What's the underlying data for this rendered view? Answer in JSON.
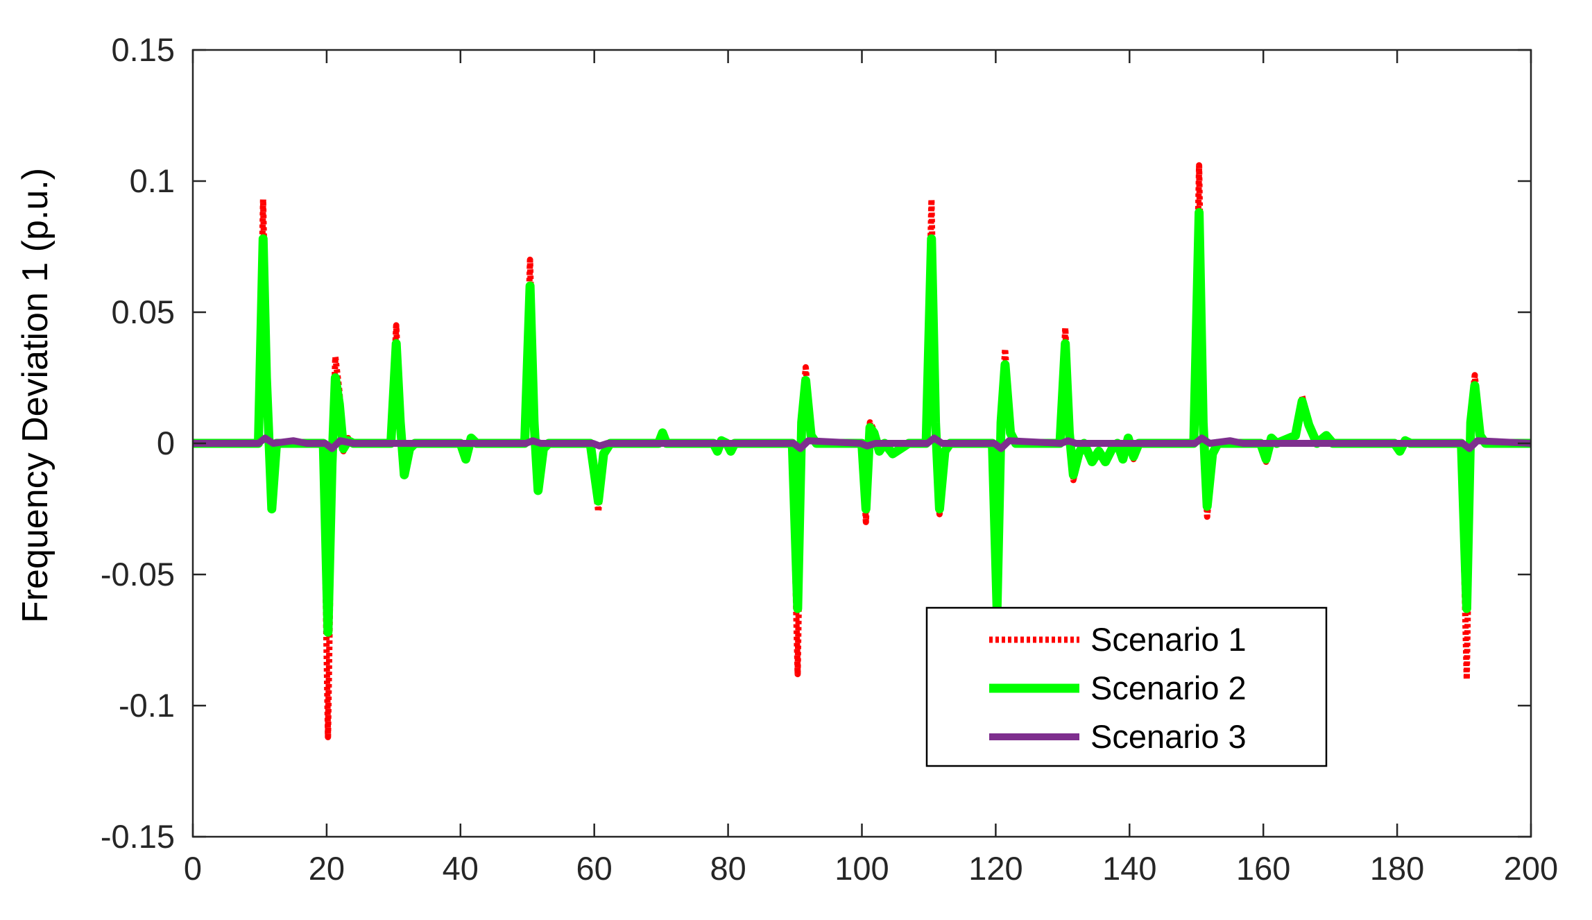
{
  "chart_data": {
    "type": "line",
    "title": "",
    "xlabel": "",
    "ylabel": "Frequency Deviation 1 (p.u.)",
    "xlim": [
      0,
      200
    ],
    "ylim": [
      -0.15,
      0.15
    ],
    "xticks": [
      0,
      20,
      40,
      60,
      80,
      100,
      120,
      140,
      160,
      180,
      200
    ],
    "xtick_labels": [
      "0",
      "20",
      "40",
      "60",
      "80",
      "100",
      "120",
      "140",
      "160",
      "180",
      "200"
    ],
    "yticks": [
      -0.15,
      -0.1,
      -0.05,
      0,
      0.05,
      0.1,
      0.15
    ],
    "ytick_labels": [
      "-0.15",
      "-0.1",
      "-0.05",
      "0",
      "0.05",
      "0.1",
      "0.15"
    ],
    "grid": false,
    "legend": {
      "position": "bottom-right",
      "entries": [
        "Scenario 1",
        "Scenario 2",
        "Scenario 3"
      ]
    },
    "series": [
      {
        "name": "Scenario 1",
        "color": "#ff0000",
        "style": "dotted",
        "x": [
          0,
          9.8,
          10.5,
          11.0,
          11.8,
          12.5,
          19.5,
          20.2,
          20.8,
          21.3,
          21.9,
          22.5,
          23.2,
          24.0,
          29.6,
          30.4,
          31.0,
          31.6,
          32.4,
          33.2,
          40.0,
          40.8,
          41.6,
          42.4,
          49.6,
          50.4,
          51.0,
          51.6,
          52.4,
          53.2,
          59.4,
          60.6,
          61.4,
          62.4,
          69.6,
          70.2,
          70.8,
          77.8,
          78.4,
          79.0,
          79.8,
          80.4,
          81.0,
          89.6,
          90.4,
          91.0,
          91.6,
          92.4,
          93.2,
          100.0,
          100.6,
          101.2,
          101.8,
          102.6,
          103.4,
          104.6,
          105.8,
          107.0,
          109.6,
          110.4,
          111.0,
          111.6,
          112.4,
          113.2,
          119.5,
          120.2,
          120.8,
          121.4,
          122.2,
          123.0,
          129.6,
          130.4,
          131.0,
          131.6,
          132.4,
          133.2,
          134.4,
          135.4,
          136.4,
          137.4,
          138.2,
          139.0,
          139.8,
          140.6,
          141.4,
          149.6,
          150.4,
          151.0,
          151.6,
          152.4,
          153.2,
          159.6,
          160.4,
          161.2,
          162.0,
          164.8,
          165.8,
          166.8,
          168.0,
          169.4,
          170.4,
          171.2,
          172.0,
          179.6,
          180.4,
          181.2,
          182.0,
          189.6,
          190.4,
          191.0,
          191.6,
          192.4,
          193.2,
          200
        ],
        "y": [
          0,
          0,
          0.093,
          0.03,
          -0.026,
          0,
          0,
          -0.112,
          -0.01,
          0.033,
          0.02,
          -0.003,
          0.002,
          0,
          0,
          0.045,
          0.01,
          -0.013,
          -0.003,
          0,
          0,
          -0.006,
          0.002,
          0,
          0,
          0.07,
          0.01,
          -0.019,
          -0.003,
          0,
          0,
          -0.026,
          -0.005,
          0,
          0,
          0.004,
          0,
          0,
          -0.003,
          0.001,
          0,
          -0.003,
          0,
          0,
          -0.088,
          0.01,
          0.029,
          0.004,
          0,
          0,
          -0.03,
          0.008,
          0.005,
          -0.003,
          0,
          -0.004,
          -0.002,
          0,
          0,
          0.093,
          0.01,
          -0.027,
          -0.004,
          0,
          0,
          -0.063,
          0.01,
          0.036,
          0.005,
          0,
          0,
          0.044,
          0.005,
          -0.014,
          -0.005,
          0,
          -0.008,
          -0.004,
          -0.008,
          -0.002,
          0,
          -0.007,
          0.002,
          -0.006,
          0,
          0,
          0.106,
          0.01,
          -0.028,
          -0.005,
          0,
          0,
          -0.007,
          0.002,
          0,
          0.003,
          0.018,
          0.008,
          0,
          0.003,
          0,
          0,
          0,
          0,
          -0.003,
          0.001,
          0,
          0,
          -0.09,
          0.01,
          0.026,
          0.004,
          0,
          0
        ]
      },
      {
        "name": "Scenario 2",
        "color": "#00ff00",
        "style": "solid",
        "x": [
          0,
          9.8,
          10.5,
          11.0,
          11.8,
          12.5,
          19.5,
          20.2,
          20.8,
          21.3,
          21.9,
          22.5,
          23.2,
          24.0,
          29.6,
          30.4,
          31.0,
          31.6,
          32.4,
          33.2,
          40.0,
          40.8,
          41.6,
          42.4,
          49.6,
          50.4,
          51.0,
          51.6,
          52.4,
          53.2,
          59.4,
          60.6,
          61.4,
          62.4,
          69.6,
          70.2,
          70.8,
          77.8,
          78.4,
          79.0,
          79.8,
          80.4,
          81.0,
          89.6,
          90.4,
          91.0,
          91.6,
          92.4,
          93.2,
          100.0,
          100.6,
          101.2,
          101.8,
          102.6,
          103.4,
          104.6,
          105.8,
          107.0,
          109.6,
          110.4,
          111.0,
          111.6,
          112.4,
          113.2,
          119.5,
          120.2,
          120.8,
          121.4,
          122.2,
          123.0,
          129.6,
          130.4,
          131.0,
          131.6,
          132.4,
          133.2,
          134.4,
          135.4,
          136.4,
          137.4,
          138.2,
          139.0,
          139.8,
          140.6,
          141.4,
          149.6,
          150.4,
          151.0,
          151.6,
          152.4,
          153.2,
          159.6,
          160.4,
          161.2,
          162.0,
          164.8,
          165.8,
          166.8,
          168.0,
          169.4,
          170.4,
          171.2,
          172.0,
          179.6,
          180.4,
          181.2,
          182.0,
          189.6,
          190.4,
          191.0,
          191.6,
          192.4,
          193.2,
          200
        ],
        "y": [
          0,
          0,
          0.078,
          0.025,
          -0.025,
          0,
          0,
          -0.072,
          -0.008,
          0.025,
          0.015,
          -0.002,
          0.001,
          0,
          0,
          0.038,
          0.008,
          -0.012,
          -0.002,
          0,
          0,
          -0.006,
          0.002,
          0,
          0,
          0.06,
          0.008,
          -0.018,
          -0.002,
          0,
          0,
          -0.022,
          -0.004,
          0,
          0,
          0.004,
          0,
          0,
          -0.003,
          0.001,
          0,
          -0.003,
          0,
          0,
          -0.063,
          0.008,
          0.024,
          0.003,
          0,
          0,
          -0.025,
          0.006,
          0.004,
          -0.003,
          0,
          -0.004,
          -0.002,
          0,
          0,
          0.078,
          0.008,
          -0.025,
          -0.003,
          0,
          0,
          -0.063,
          0.008,
          0.03,
          0.004,
          0,
          0,
          0.038,
          0.004,
          -0.012,
          -0.004,
          0,
          -0.007,
          -0.003,
          -0.007,
          -0.002,
          0,
          -0.006,
          0.002,
          -0.005,
          0,
          0,
          0.088,
          0.008,
          -0.024,
          -0.004,
          0,
          0,
          -0.006,
          0.002,
          0,
          0.003,
          0.016,
          0.007,
          0,
          0.003,
          0,
          0,
          0,
          0,
          -0.003,
          0.001,
          0,
          0,
          -0.063,
          0.008,
          0.022,
          0.003,
          0,
          0
        ]
      },
      {
        "name": "Scenario 3",
        "color": "#7e2f8e",
        "style": "solid",
        "x": [
          0,
          9.8,
          10.8,
          12.0,
          15.0,
          17.0,
          19.8,
          20.8,
          22.0,
          24.0,
          28.0,
          49.8,
          50.8,
          52.0,
          59.8,
          60.8,
          62.0,
          64.0,
          89.8,
          90.8,
          92.0,
          99.8,
          100.8,
          102.0,
          109.8,
          110.8,
          112.0,
          119.8,
          120.8,
          122.0,
          129.8,
          130.8,
          132.0,
          149.8,
          150.8,
          152.0,
          155.0,
          157.0,
          189.8,
          190.8,
          192.0,
          200
        ],
        "y": [
          0,
          0,
          0.002,
          0,
          0.001,
          0,
          0,
          -0.002,
          0.001,
          0,
          0,
          0,
          0.001,
          0,
          0,
          -0.001,
          0,
          0,
          0,
          -0.002,
          0.001,
          0,
          -0.001,
          0,
          0,
          0.002,
          0,
          0,
          -0.002,
          0.001,
          0,
          0.001,
          0,
          0,
          0.002,
          0,
          0.001,
          0,
          0,
          -0.002,
          0.001,
          0
        ]
      }
    ]
  }
}
